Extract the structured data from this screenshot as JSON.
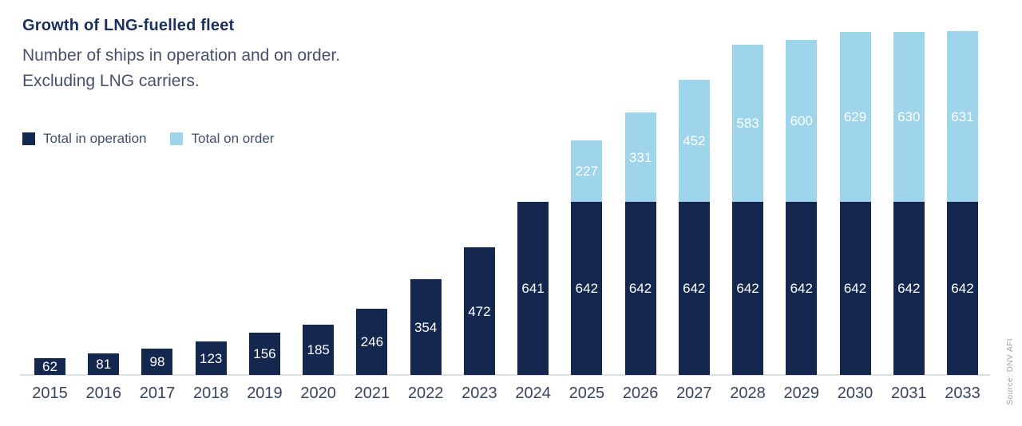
{
  "header": {
    "title": "Growth of LNG-fuelled fleet",
    "subtitle_line1": "Number of ships in operation and on order.",
    "subtitle_line2": "Excluding LNG carriers."
  },
  "legend": {
    "in_operation": "Total in operation",
    "on_order": "Total on order"
  },
  "source": "Source: DNV AFI",
  "colors": {
    "in_operation": "#14284f",
    "on_order": "#9fd5eb",
    "title": "#1b2f5e",
    "subtitle": "#47506a",
    "value_label": "#ffffff",
    "axis_line": "#dcdfe4"
  },
  "chart_data": {
    "type": "bar",
    "stacked": true,
    "title": "Growth of LNG-fuelled fleet",
    "subtitle": "Number of ships in operation and on order. Excluding LNG carriers.",
    "xlabel": "",
    "ylabel": "Number of ships",
    "grid": false,
    "legend_position": "top-left",
    "value_labels": true,
    "ylim": [
      0,
      1300
    ],
    "categories": [
      "2015",
      "2016",
      "2017",
      "2018",
      "2019",
      "2020",
      "2021",
      "2022",
      "2023",
      "2024",
      "2025",
      "2026",
      "2027",
      "2028",
      "2029",
      "2030",
      "2031",
      "2033"
    ],
    "series": [
      {
        "name": "Total in operation",
        "color": "#14284f",
        "values": [
          62,
          81,
          98,
          123,
          156,
          185,
          246,
          354,
          472,
          641,
          642,
          642,
          642,
          642,
          642,
          642,
          642,
          642
        ]
      },
      {
        "name": "Total on order",
        "color": "#9fd5eb",
        "values": [
          0,
          0,
          0,
          0,
          0,
          0,
          0,
          0,
          0,
          0,
          227,
          331,
          452,
          583,
          600,
          629,
          630,
          631
        ]
      }
    ]
  }
}
